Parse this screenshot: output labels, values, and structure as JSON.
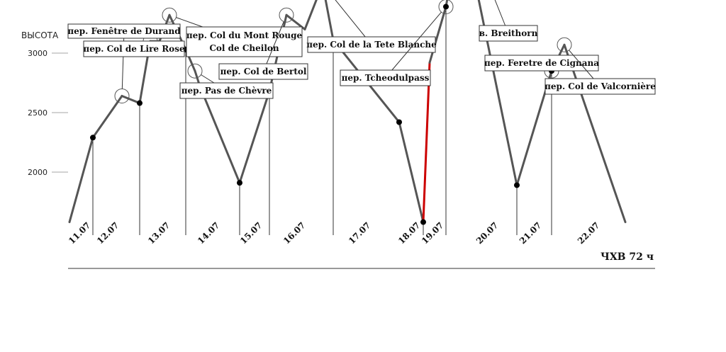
{
  "chart_data": {
    "type": "line",
    "ylabel": "ВЫСОТА",
    "ylim": [
      1550,
      4250
    ],
    "yticks": [
      2000,
      2500,
      3000,
      3500,
      4000
    ],
    "grid": false,
    "line_color": "#555555",
    "highlight_color": "#cc0000",
    "date_labels": [
      "11.07",
      "12.07",
      "13.07",
      "14.07",
      "15.07",
      "16.07",
      "17.07",
      "18.07",
      "19.07",
      "20.07",
      "21.07",
      "22.07"
    ],
    "points": [
      {
        "i": 0,
        "y": 1580
      },
      {
        "i": 1,
        "y": 2290,
        "marker": true,
        "divider": true
      },
      {
        "i": 2,
        "y": 2640
      },
      {
        "i": 3,
        "y": 2580,
        "marker": true,
        "divider": true
      },
      {
        "i": 4,
        "y": 3100
      },
      {
        "i": 5,
        "y": 3100
      },
      {
        "i": 6,
        "y": 3320
      },
      {
        "i": 7,
        "y": 3030,
        "marker": true,
        "divider": true
      },
      {
        "i": 8,
        "y": 2850
      },
      {
        "i": 9,
        "y": 2720
      },
      {
        "i": 10,
        "y": 1910,
        "marker": true,
        "divider": true
      },
      {
        "i": 11,
        "y": 2680,
        "marker": true,
        "divider": true
      },
      {
        "i": 12,
        "y": 3320
      },
      {
        "i": 13,
        "y": 3200
      },
      {
        "i": 14,
        "y": 3580
      },
      {
        "i": 15,
        "y": 3110,
        "marker": true,
        "divider": true
      },
      {
        "i": 16,
        "y": 2420,
        "marker": true
      },
      {
        "i": 17,
        "y": 1580,
        "marker": true,
        "divider": true
      },
      {
        "i": 18,
        "y": 2920
      },
      {
        "i": 19,
        "y": 3390,
        "marker": true,
        "divider": true
      },
      {
        "i": 20,
        "y": 4150
      },
      {
        "i": 21,
        "y": 1890,
        "marker": true,
        "divider": true
      },
      {
        "i": 22,
        "y": 2850,
        "marker": true,
        "divider": true
      },
      {
        "i": 23,
        "y": 3070
      },
      {
        "i": 24,
        "y": 1580
      }
    ],
    "highlight_segment": [
      17,
      18
    ],
    "annotations": [
      {
        "lines": [
          "пер. Fenêtre de Durand"
        ],
        "target": 2
      },
      {
        "lines": [
          "пер. Col de Lire Rose"
        ],
        "target": 4
      },
      {
        "lines": [
          "пер. Col du Mont Rouge",
          "Col de Cheilon"
        ],
        "target": 6
      },
      {
        "lines": [
          "пер. Pas de Chèvre"
        ],
        "target": 8
      },
      {
        "lines": [
          "пер. Col de Bertol"
        ],
        "target": 12
      },
      {
        "lines": [
          "пер. Col de la Tete Blanche"
        ],
        "target": 14
      },
      {
        "lines": [
          "пер. Tcheodulpass"
        ],
        "target": 19
      },
      {
        "lines": [
          "в. Breithorn"
        ],
        "target": 20
      },
      {
        "lines": [
          "пер. Feretre de Cignana"
        ],
        "target": 22
      },
      {
        "lines": [
          "пер. Col de Valcornière"
        ],
        "target": 23
      }
    ]
  },
  "footer": {
    "label": "ЧХВ 72 ч"
  }
}
